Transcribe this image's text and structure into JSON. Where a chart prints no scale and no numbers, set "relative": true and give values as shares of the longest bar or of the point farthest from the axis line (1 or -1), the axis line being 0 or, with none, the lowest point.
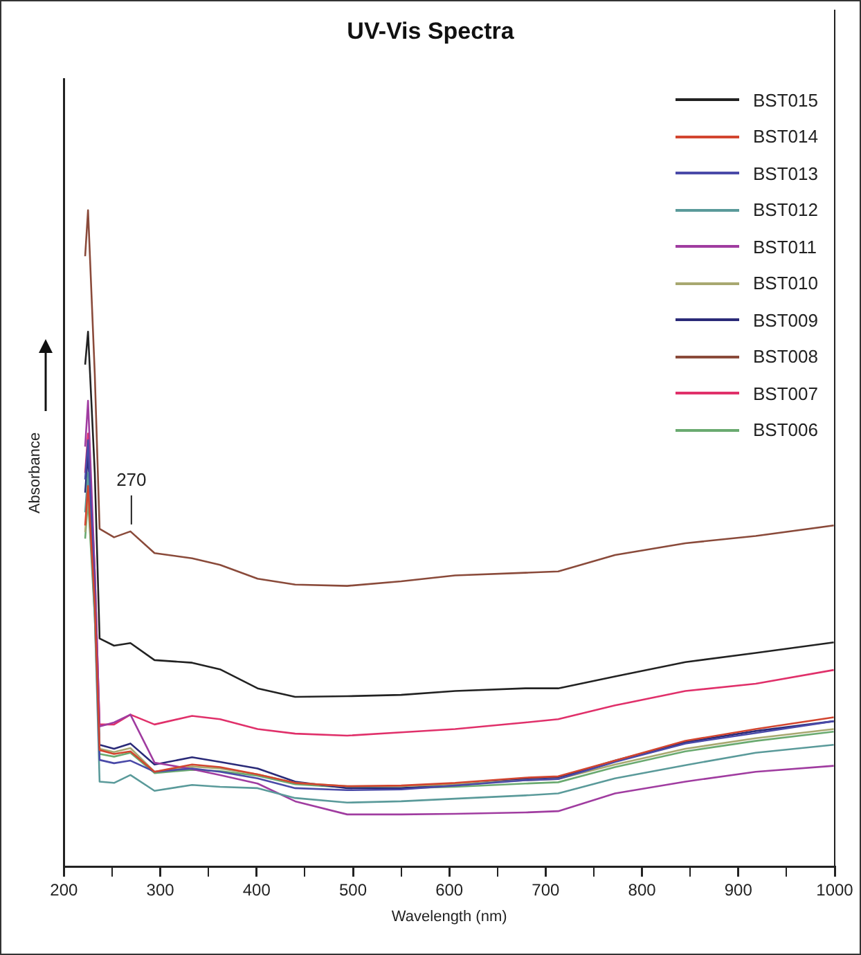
{
  "chart_data": {
    "type": "line",
    "title": "UV-Vis Spectra",
    "xlabel": "Wavelength (nm)",
    "ylabel": "Absorbance",
    "relative": true,
    "legend": "top right",
    "grid": false,
    "x": [
      222,
      225,
      232,
      237,
      252,
      269,
      294,
      333,
      362,
      401,
      440,
      494,
      550,
      606,
      679,
      713,
      772,
      845,
      918,
      999
    ],
    "xlim": [
      200,
      1000
    ],
    "xticks": [
      200,
      {
        "value": 250,
        "label": null
      },
      300,
      {
        "value": 350,
        "label": null
      },
      400,
      {
        "value": 450,
        "label": null
      },
      500,
      {
        "value": 550,
        "label": null
      },
      600,
      {
        "value": 650,
        "label": null
      },
      700,
      {
        "value": 750,
        "label": null
      },
      800,
      {
        "value": 850,
        "label": null
      },
      900,
      {
        "value": 950,
        "label": null
      },
      1000
    ],
    "annotations": [
      {
        "text": "270",
        "x": 270,
        "y": 0.511
      }
    ],
    "series": [
      {
        "name": "BST015",
        "color": "#222222",
        "values": [
          0.765,
          0.815,
          0.6,
          0.348,
          0.337,
          0.341,
          0.315,
          0.311,
          0.301,
          0.272,
          0.259,
          0.26,
          0.262,
          0.268,
          0.272,
          0.272,
          0.29,
          0.312,
          0.326,
          0.342
        ]
      },
      {
        "name": "BST014",
        "color": "#d2452f",
        "values": [
          0.52,
          0.58,
          0.4,
          0.178,
          0.172,
          0.176,
          0.145,
          0.156,
          0.152,
          0.141,
          0.128,
          0.123,
          0.124,
          0.128,
          0.136,
          0.138,
          0.162,
          0.192,
          0.21,
          0.228
        ]
      },
      {
        "name": "BST013",
        "color": "#4a4aa8",
        "values": [
          0.59,
          0.65,
          0.42,
          0.163,
          0.158,
          0.162,
          0.145,
          0.15,
          0.145,
          0.135,
          0.12,
          0.117,
          0.118,
          0.124,
          0.132,
          0.134,
          0.16,
          0.188,
          0.204,
          0.222
        ]
      },
      {
        "name": "BST012",
        "color": "#5a9a9a",
        "values": [
          0.54,
          0.6,
          0.38,
          0.13,
          0.128,
          0.14,
          0.116,
          0.125,
          0.122,
          0.12,
          0.105,
          0.098,
          0.1,
          0.104,
          0.109,
          0.112,
          0.135,
          0.155,
          0.174,
          0.186
        ]
      },
      {
        "name": "BST011",
        "color": "#a03ca0",
        "values": [
          0.64,
          0.71,
          0.45,
          0.214,
          0.22,
          0.232,
          0.159,
          0.149,
          0.14,
          0.127,
          0.1,
          0.08,
          0.08,
          0.081,
          0.083,
          0.085,
          0.112,
          0.13,
          0.145,
          0.154
        ]
      },
      {
        "name": "BST010",
        "color": "#a8a870",
        "values": [
          0.51,
          0.57,
          0.4,
          0.18,
          0.175,
          0.181,
          0.145,
          0.153,
          0.15,
          0.141,
          0.128,
          0.123,
          0.123,
          0.126,
          0.132,
          0.134,
          0.156,
          0.18,
          0.196,
          0.21
        ]
      },
      {
        "name": "BST009",
        "color": "#2a2a78",
        "values": [
          0.57,
          0.63,
          0.42,
          0.186,
          0.18,
          0.188,
          0.156,
          0.167,
          0.16,
          0.15,
          0.13,
          0.12,
          0.12,
          0.125,
          0.134,
          0.136,
          0.162,
          0.19,
          0.207,
          0.222
        ]
      },
      {
        "name": "BST008",
        "color": "#8a4a3a",
        "values": [
          0.93,
          1.0,
          0.75,
          0.515,
          0.502,
          0.511,
          0.478,
          0.47,
          0.46,
          0.439,
          0.43,
          0.428,
          0.435,
          0.444,
          0.448,
          0.45,
          0.475,
          0.493,
          0.504,
          0.52
        ]
      },
      {
        "name": "BST007",
        "color": "#e0306a",
        "values": [
          0.6,
          0.66,
          0.45,
          0.217,
          0.217,
          0.232,
          0.217,
          0.23,
          0.225,
          0.21,
          0.203,
          0.2,
          0.205,
          0.21,
          0.22,
          0.225,
          0.246,
          0.268,
          0.279,
          0.3
        ]
      },
      {
        "name": "BST006",
        "color": "#6aaa70",
        "values": [
          0.5,
          0.56,
          0.38,
          0.172,
          0.168,
          0.174,
          0.143,
          0.148,
          0.146,
          0.139,
          0.126,
          0.121,
          0.12,
          0.122,
          0.127,
          0.129,
          0.152,
          0.176,
          0.192,
          0.206
        ]
      }
    ]
  }
}
